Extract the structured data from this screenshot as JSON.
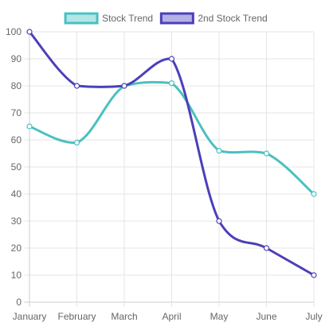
{
  "chart_data": {
    "type": "line",
    "categories": [
      "January",
      "February",
      "March",
      "April",
      "May",
      "June",
      "July"
    ],
    "ylim": [
      0,
      100
    ],
    "y_ticks": [
      0,
      10,
      20,
      30,
      40,
      50,
      60,
      70,
      80,
      90,
      100
    ],
    "grid": true,
    "legend_position": "top",
    "series": [
      {
        "name": "Stock Trend",
        "values": [
          65,
          59,
          80,
          81,
          56,
          55,
          40
        ],
        "color": "#4bc0c0",
        "fill": "#b3e6e6"
      },
      {
        "name": "2nd Stock Trend",
        "values": [
          100,
          80,
          80,
          90,
          30,
          20,
          10
        ],
        "color": "#4b40b8",
        "fill": "#b3b0e6"
      }
    ]
  }
}
